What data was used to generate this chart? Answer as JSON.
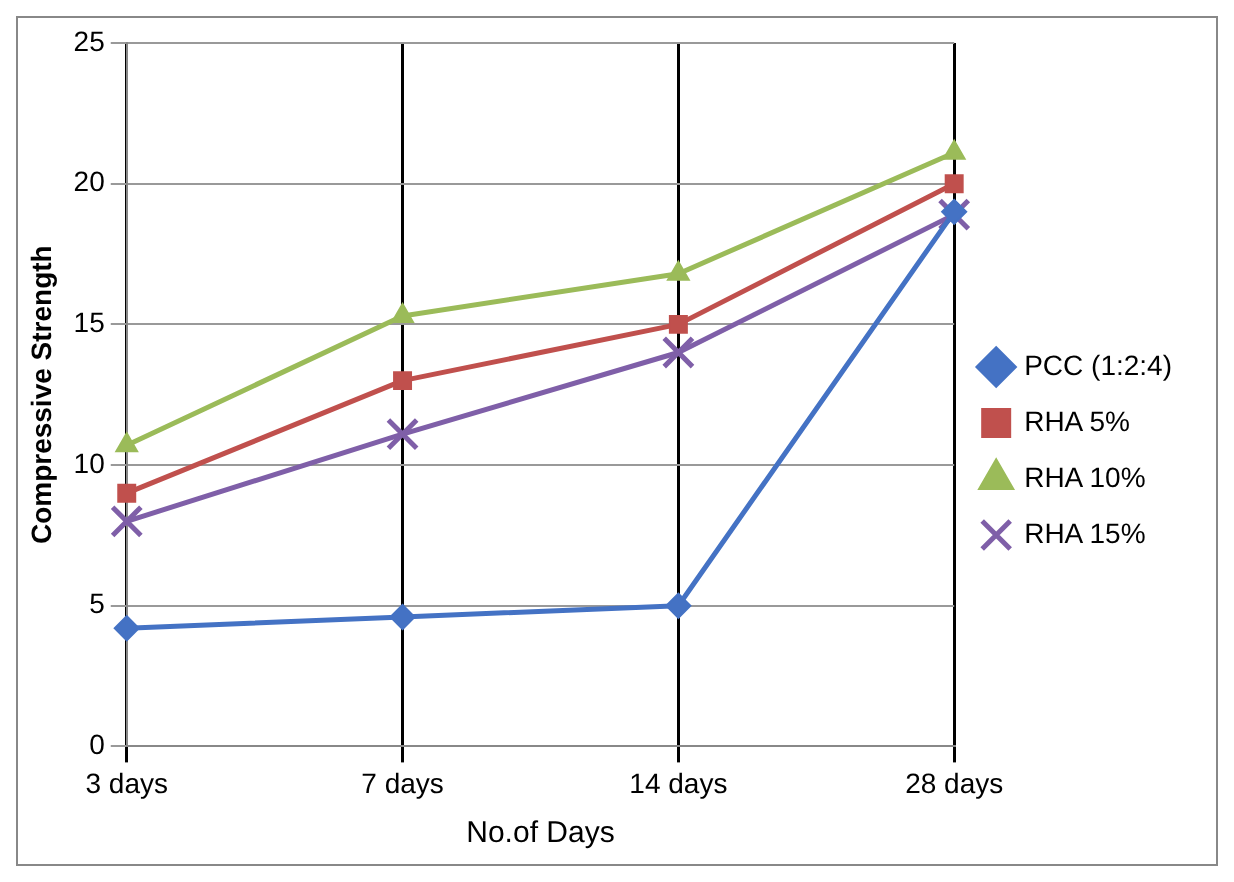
{
  "chart_data": {
    "type": "line",
    "xlabel": "No.of Days",
    "ylabel": "Compressive Strength",
    "categories": [
      "3 days",
      "7 days",
      "14 days",
      "28 days"
    ],
    "series": [
      {
        "name": "PCC (1:2:4)",
        "color": "#4472c4",
        "marker": "diamond",
        "values": [
          4.2,
          4.6,
          5.0,
          19.0
        ]
      },
      {
        "name": "RHA 5%",
        "color": "#c0504d",
        "marker": "square",
        "values": [
          9.0,
          13.0,
          15.0,
          20.0
        ]
      },
      {
        "name": "RHA 10%",
        "color": "#9bbb59",
        "marker": "triangle",
        "values": [
          10.7,
          15.3,
          16.8,
          21.1
        ]
      },
      {
        "name": "RHA 15%",
        "color": "#7f5fa8",
        "marker": "cross",
        "values": [
          8.0,
          11.1,
          14.0,
          18.9
        ]
      }
    ],
    "ylim": [
      0,
      25
    ],
    "yticks": [
      0,
      5,
      10,
      15,
      20,
      25
    ],
    "grid": true,
    "legend": "right"
  }
}
